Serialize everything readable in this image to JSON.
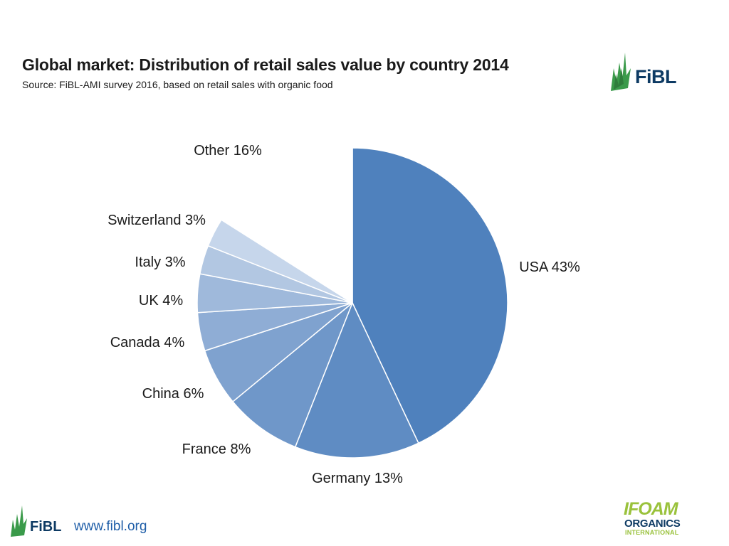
{
  "header": {
    "title": "Global market: Distribution of retail sales value by country 2014",
    "subtitle": "Source: FiBL-AMI survey 2016, based on retail sales with organic food",
    "logo_text": "FiBL"
  },
  "footer": {
    "logo_text": "FiBL",
    "url": "www.fibl.org",
    "partner_logo": {
      "line1": "IFOAM",
      "line2": "ORGANICS",
      "line3": "INTERNATIONAL"
    }
  },
  "colors": {
    "brand_navy": "#0d3a63",
    "brand_green": "#3a9a4a",
    "ifoam_green": "#9ac23c",
    "link_blue": "#1f5ea8"
  },
  "chart_data": {
    "type": "pie",
    "title": "Global market: Distribution of retail sales value by country 2014",
    "start": "12 o'clock, clockwise",
    "slices": [
      {
        "label": "USA 43%",
        "name": "USA",
        "value": 43,
        "color": "#4f81bd"
      },
      {
        "label": "Germany 13%",
        "name": "Germany",
        "value": 13,
        "color": "#5f8cc3"
      },
      {
        "label": "France 8%",
        "name": "France",
        "value": 8,
        "color": "#6f97c9"
      },
      {
        "label": "China 6%",
        "name": "China",
        "value": 6,
        "color": "#7fa2cf"
      },
      {
        "label": "Canada 4%",
        "name": "Canada",
        "value": 4,
        "color": "#8fadd5"
      },
      {
        "label": "UK 4%",
        "name": "UK",
        "value": 4,
        "color": "#9fb9db"
      },
      {
        "label": "Italy 3%",
        "name": "Italy",
        "value": 3,
        "color": "#b2c7e2"
      },
      {
        "label": "Switzerland 3%",
        "name": "Switzerland",
        "value": 3,
        "color": "#c6d6eb"
      },
      {
        "label": "Other 16%",
        "name": "Other",
        "value": 16,
        "color": "#ffffff"
      }
    ]
  }
}
